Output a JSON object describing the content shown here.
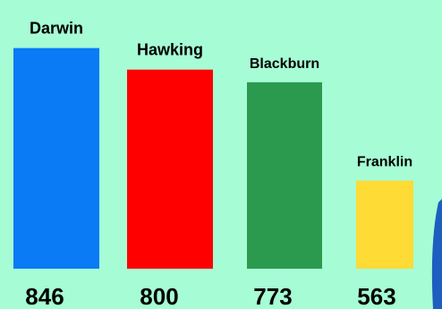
{
  "chart_data": {
    "type": "bar",
    "categories": [
      "Darwin",
      "Hawking",
      "Blackburn",
      "Franklin"
    ],
    "values": [
      846,
      800,
      773,
      563
    ],
    "colors": [
      "#0a7af5",
      "#fe0000",
      "#2c9a4e",
      "#fedb35"
    ],
    "title": "",
    "xlabel": "",
    "ylabel": "",
    "grid": false,
    "legend": "none",
    "background": "#a6fcd4",
    "decoration_color": "#1c5fbf"
  }
}
